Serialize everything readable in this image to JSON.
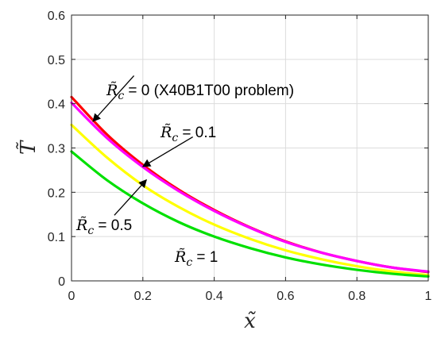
{
  "chart_data": {
    "type": "line",
    "title": "",
    "xlabel": "x̃",
    "ylabel": "T̃",
    "xlim": [
      0,
      1
    ],
    "ylim": [
      0,
      0.6
    ],
    "xticks": [
      0,
      0.2,
      0.4,
      0.6,
      0.8,
      1
    ],
    "yticks": [
      0,
      0.1,
      0.2,
      0.3,
      0.4,
      0.5,
      0.6
    ],
    "xtick_labels": [
      "0",
      "0.2",
      "0.4",
      "0.6",
      "0.8",
      "1"
    ],
    "ytick_labels": [
      "0",
      "0.1",
      "0.2",
      "0.3",
      "0.4",
      "0.5",
      "0.6"
    ],
    "grid": true,
    "series": [
      {
        "color": "#ff0000",
        "x": [
          0,
          0.1,
          0.2,
          0.3,
          0.4,
          0.5,
          0.6,
          0.7,
          0.8,
          0.9,
          1.0
        ],
        "y": [
          0.415,
          0.33,
          0.262,
          0.206,
          0.16,
          0.121,
          0.089,
          0.064,
          0.045,
          0.03,
          0.02
        ]
      },
      {
        "color": "#ff00ff",
        "x": [
          0,
          0.1,
          0.2,
          0.3,
          0.4,
          0.5,
          0.6,
          0.7,
          0.8,
          0.9,
          1.0
        ],
        "y": [
          0.402,
          0.322,
          0.257,
          0.203,
          0.158,
          0.12,
          0.088,
          0.064,
          0.045,
          0.03,
          0.021
        ]
      },
      {
        "color": "#ffff00",
        "x": [
          0,
          0.1,
          0.2,
          0.3,
          0.4,
          0.5,
          0.6,
          0.7,
          0.8,
          0.9,
          1.0
        ],
        "y": [
          0.352,
          0.278,
          0.216,
          0.167,
          0.127,
          0.095,
          0.069,
          0.049,
          0.033,
          0.021,
          0.013
        ]
      },
      {
        "color": "#00e000",
        "x": [
          0,
          0.1,
          0.2,
          0.3,
          0.4,
          0.5,
          0.6,
          0.7,
          0.8,
          0.9,
          1.0
        ],
        "y": [
          0.292,
          0.227,
          0.175,
          0.133,
          0.1,
          0.074,
          0.053,
          0.037,
          0.025,
          0.016,
          0.01
        ]
      }
    ],
    "annotations": [
      {
        "prefix": "R̃",
        "subscript": "c",
        "rest": " = 0 (X40B1T00 problem)",
        "arrow_from": [
          0.175,
          0.463
        ],
        "arrow_to": [
          0.06,
          0.36
        ]
      },
      {
        "prefix": "R̃",
        "subscript": "c",
        "rest": " = 0.1",
        "arrow_from": [
          0.34,
          0.325
        ],
        "arrow_to": [
          0.2,
          0.258
        ]
      },
      {
        "prefix": "R̃",
        "subscript": "c",
        "rest": " = 0.5",
        "arrow_from": [
          0.12,
          0.148
        ],
        "arrow_to": [
          0.21,
          0.228
        ]
      },
      {
        "prefix": "R̃",
        "subscript": "c",
        "rest": " = 1"
      }
    ]
  }
}
